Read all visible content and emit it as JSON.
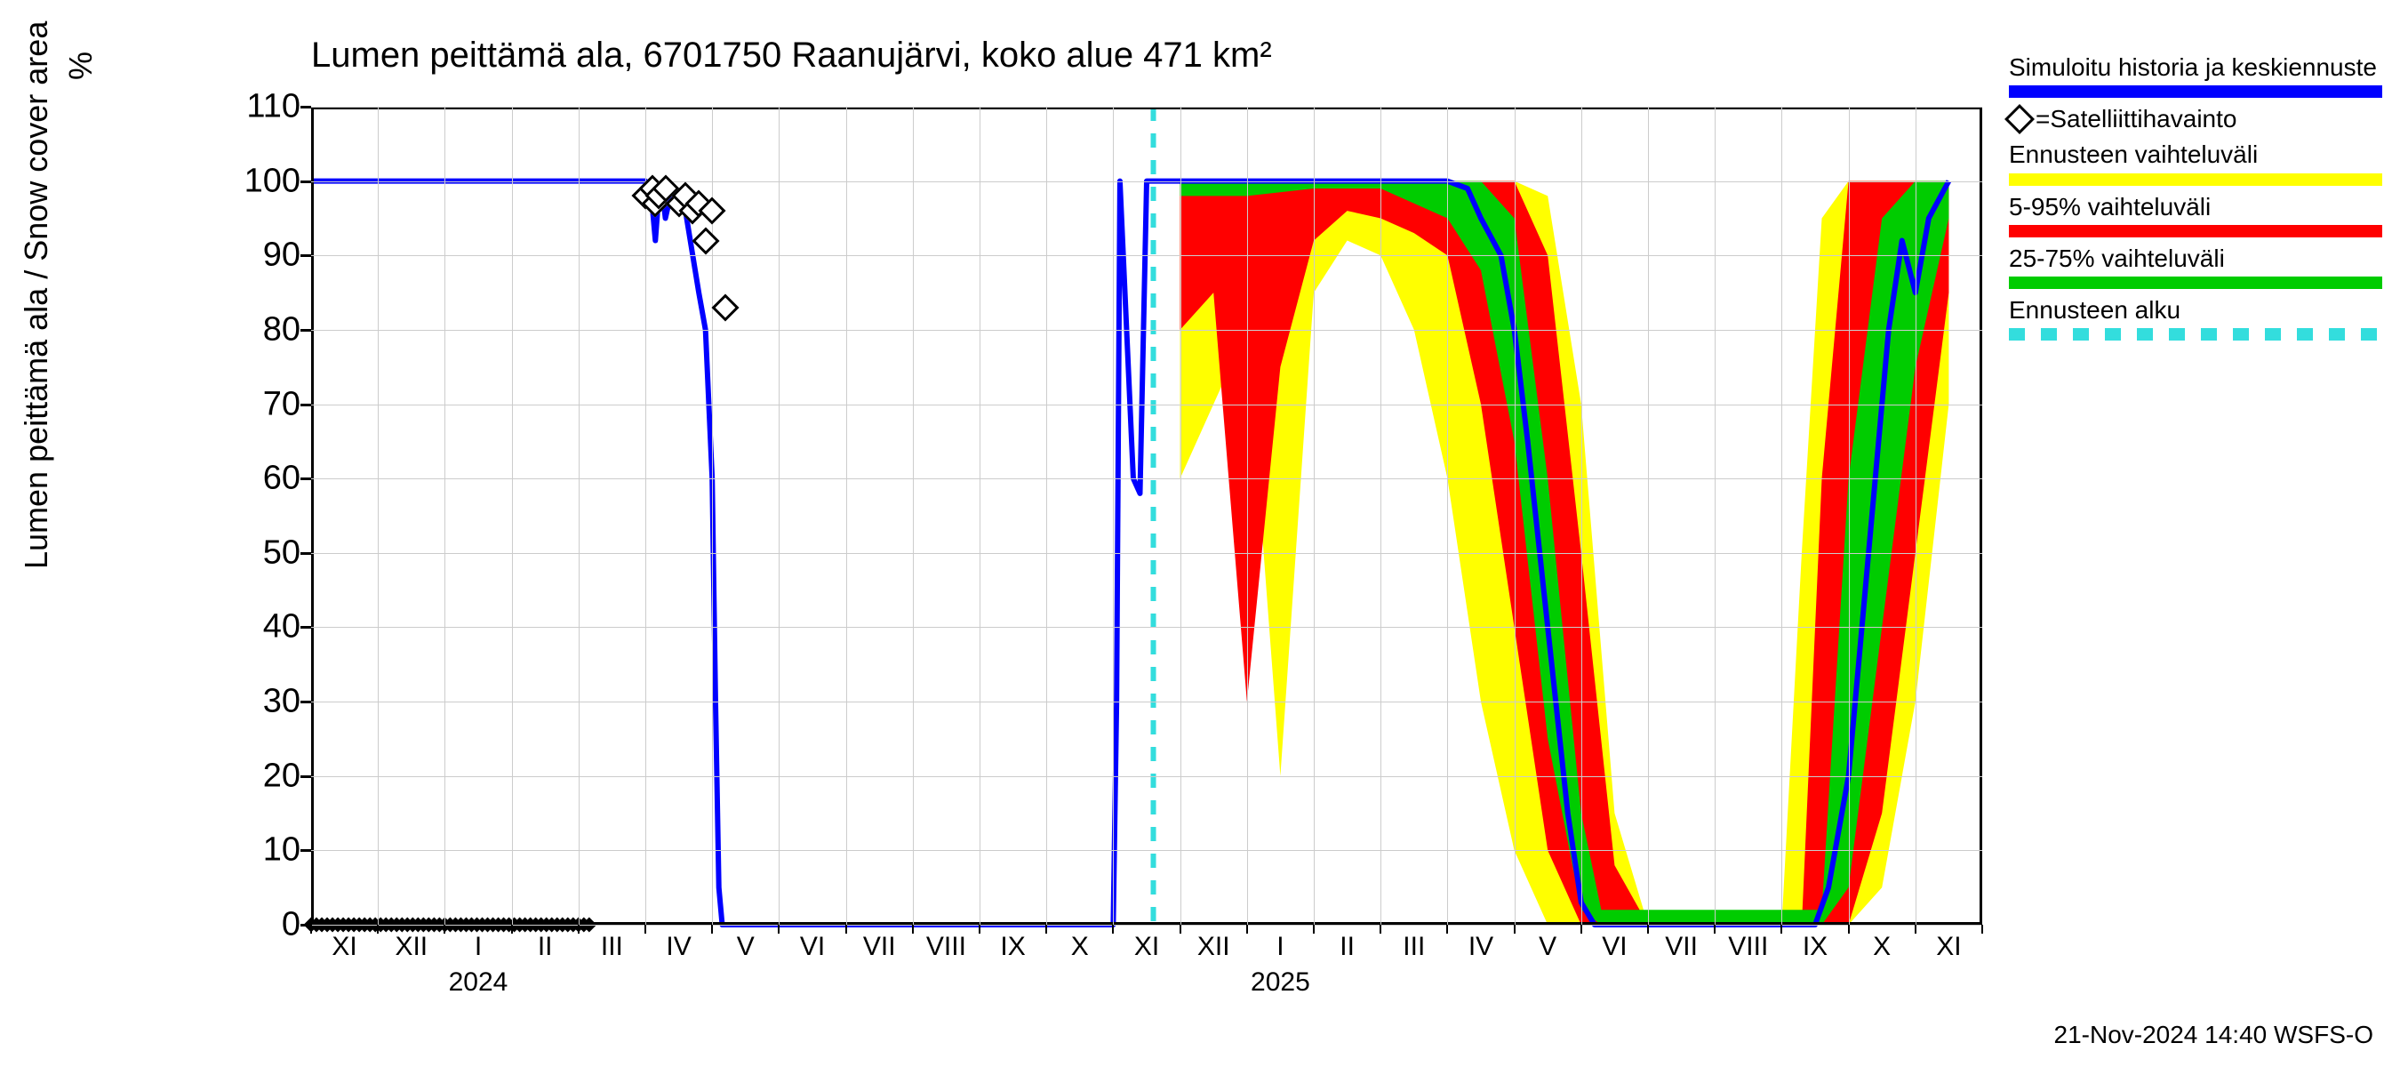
{
  "chart": {
    "type": "line-with-bands",
    "title": "Lumen peittämä ala, 6701750 Raanujärvi, koko alue 471 km²",
    "y_label": "Lumen peittämä ala / Snow cover area",
    "y_unit": "%",
    "background_color": "#ffffff",
    "grid_color": "#cccccc",
    "axis_color": "#000000",
    "title_fontsize": 40,
    "label_fontsize": 36,
    "tick_fontsize": 38,
    "xtick_fontsize": 30,
    "ylim": [
      0,
      110
    ],
    "yticks": [
      0,
      10,
      20,
      30,
      40,
      50,
      60,
      70,
      80,
      90,
      100,
      110
    ],
    "x_months": [
      "XI",
      "XII",
      "I",
      "II",
      "III",
      "IV",
      "V",
      "VI",
      "VII",
      "VIII",
      "IX",
      "X",
      "XI",
      "XII",
      "I",
      "II",
      "III",
      "IV",
      "V",
      "VI",
      "VII",
      "VIII",
      "IX",
      "X",
      "XI"
    ],
    "x_years": [
      {
        "label": "2024",
        "at_index": 2.5
      },
      {
        "label": "2025",
        "at_index": 14.5
      }
    ],
    "colors": {
      "median": "#0000ff",
      "range_full": "#ffff00",
      "range_5_95": "#ff0000",
      "range_25_75": "#00cc00",
      "forecast_start": "#33dddd",
      "satellite_marker_border": "#000000",
      "satellite_marker_fill": "#ffffff"
    },
    "line_widths": {
      "median": 6,
      "forecast_dash": 6
    },
    "forecast_start_x": 12.6,
    "median_line": [
      [
        0,
        100
      ],
      [
        5,
        100
      ],
      [
        5.1,
        97
      ],
      [
        5.15,
        92
      ],
      [
        5.2,
        98
      ],
      [
        5.25,
        99
      ],
      [
        5.3,
        95
      ],
      [
        5.4,
        99
      ],
      [
        5.6,
        96
      ],
      [
        5.8,
        85
      ],
      [
        5.9,
        80
      ],
      [
        6.0,
        60
      ],
      [
        6.05,
        30
      ],
      [
        6.1,
        5
      ],
      [
        6.15,
        0
      ],
      [
        12,
        0
      ],
      [
        12.05,
        30
      ],
      [
        12.1,
        100
      ],
      [
        12.3,
        60
      ],
      [
        12.4,
        58
      ],
      [
        12.5,
        100
      ],
      [
        12.6,
        100
      ],
      [
        17,
        100
      ],
      [
        17.3,
        99
      ],
      [
        17.5,
        95
      ],
      [
        17.8,
        90
      ],
      [
        18,
        80
      ],
      [
        18.2,
        65
      ],
      [
        18.5,
        40
      ],
      [
        18.8,
        15
      ],
      [
        19,
        3
      ],
      [
        19.2,
        0
      ],
      [
        22.5,
        0
      ],
      [
        22.7,
        5
      ],
      [
        23,
        20
      ],
      [
        23.3,
        50
      ],
      [
        23.6,
        80
      ],
      [
        23.8,
        92
      ],
      [
        24,
        85
      ],
      [
        24.2,
        95
      ],
      [
        24.5,
        100
      ]
    ],
    "band_full": [
      {
        "x": 13,
        "lo": 60,
        "hi": 100
      },
      {
        "x": 13.5,
        "lo": 70,
        "hi": 100
      },
      {
        "x": 14,
        "lo": 80,
        "hi": 100
      },
      {
        "x": 14.5,
        "lo": 20,
        "hi": 100
      },
      {
        "x": 15,
        "lo": 85,
        "hi": 100
      },
      {
        "x": 15.5,
        "lo": 92,
        "hi": 100
      },
      {
        "x": 16,
        "lo": 90,
        "hi": 100
      },
      {
        "x": 16.5,
        "lo": 80,
        "hi": 100
      },
      {
        "x": 17,
        "lo": 60,
        "hi": 100
      },
      {
        "x": 17.5,
        "lo": 30,
        "hi": 100
      },
      {
        "x": 18,
        "lo": 10,
        "hi": 100
      },
      {
        "x": 18.5,
        "lo": 0,
        "hi": 98
      },
      {
        "x": 19,
        "lo": 0,
        "hi": 70
      },
      {
        "x": 19.5,
        "lo": 0,
        "hi": 15
      },
      {
        "x": 20,
        "lo": 0,
        "hi": 0
      },
      {
        "x": 22,
        "lo": 0,
        "hi": 0
      },
      {
        "x": 22.3,
        "lo": 0,
        "hi": 50
      },
      {
        "x": 22.6,
        "lo": 0,
        "hi": 95
      },
      {
        "x": 23,
        "lo": 0,
        "hi": 100
      },
      {
        "x": 23.5,
        "lo": 5,
        "hi": 100
      },
      {
        "x": 24,
        "lo": 30,
        "hi": 100
      },
      {
        "x": 24.5,
        "lo": 70,
        "hi": 100
      }
    ],
    "band_5_95": [
      {
        "x": 13,
        "lo": 80,
        "hi": 100
      },
      {
        "x": 13.5,
        "lo": 85,
        "hi": 100
      },
      {
        "x": 14,
        "lo": 30,
        "hi": 100
      },
      {
        "x": 14.5,
        "lo": 75,
        "hi": 100
      },
      {
        "x": 15,
        "lo": 92,
        "hi": 100
      },
      {
        "x": 15.5,
        "lo": 96,
        "hi": 100
      },
      {
        "x": 16,
        "lo": 95,
        "hi": 100
      },
      {
        "x": 16.5,
        "lo": 93,
        "hi": 100
      },
      {
        "x": 17,
        "lo": 90,
        "hi": 100
      },
      {
        "x": 17.5,
        "lo": 70,
        "hi": 100
      },
      {
        "x": 18,
        "lo": 40,
        "hi": 100
      },
      {
        "x": 18.5,
        "lo": 10,
        "hi": 90
      },
      {
        "x": 19,
        "lo": 0,
        "hi": 50
      },
      {
        "x": 19.5,
        "lo": 0,
        "hi": 8
      },
      {
        "x": 20,
        "lo": 0,
        "hi": 0
      },
      {
        "x": 22.3,
        "lo": 0,
        "hi": 0
      },
      {
        "x": 22.6,
        "lo": 0,
        "hi": 60
      },
      {
        "x": 23,
        "lo": 0,
        "hi": 100
      },
      {
        "x": 23.5,
        "lo": 15,
        "hi": 100
      },
      {
        "x": 24,
        "lo": 50,
        "hi": 100
      },
      {
        "x": 24.5,
        "lo": 85,
        "hi": 100
      }
    ],
    "band_25_75": [
      {
        "x": 13,
        "lo": 98,
        "hi": 100
      },
      {
        "x": 14,
        "lo": 98,
        "hi": 100
      },
      {
        "x": 15,
        "lo": 99,
        "hi": 100
      },
      {
        "x": 16,
        "lo": 99,
        "hi": 100
      },
      {
        "x": 17,
        "lo": 95,
        "hi": 100
      },
      {
        "x": 17.5,
        "lo": 88,
        "hi": 100
      },
      {
        "x": 18,
        "lo": 65,
        "hi": 95
      },
      {
        "x": 18.5,
        "lo": 25,
        "hi": 60
      },
      {
        "x": 19,
        "lo": 2,
        "hi": 15
      },
      {
        "x": 19.3,
        "lo": 0,
        "hi": 2
      },
      {
        "x": 22.6,
        "lo": 0,
        "hi": 2
      },
      {
        "x": 23,
        "lo": 5,
        "hi": 60
      },
      {
        "x": 23.5,
        "lo": 40,
        "hi": 95
      },
      {
        "x": 24,
        "lo": 75,
        "hi": 100
      },
      {
        "x": 24.5,
        "lo": 95,
        "hi": 100
      }
    ],
    "satellite_points": [
      {
        "x": 5.0,
        "y": 98
      },
      {
        "x": 5.1,
        "y": 99
      },
      {
        "x": 5.15,
        "y": 97
      },
      {
        "x": 5.2,
        "y": 98
      },
      {
        "x": 5.3,
        "y": 99
      },
      {
        "x": 5.5,
        "y": 97
      },
      {
        "x": 5.6,
        "y": 98
      },
      {
        "x": 5.7,
        "y": 96
      },
      {
        "x": 5.8,
        "y": 97
      },
      {
        "x": 5.9,
        "y": 92
      },
      {
        "x": 6.0,
        "y": 96
      },
      {
        "x": 6.2,
        "y": 83
      }
    ],
    "zero_markers": {
      "from": 0,
      "to": 4.2
    }
  },
  "legend": {
    "items": [
      {
        "text": "Simuloitu historia ja keskiennuste",
        "swatch": "#0000ff",
        "type": "line"
      },
      {
        "text": "=Satelliittihavainto",
        "type": "marker"
      },
      {
        "text": "Ennusteen vaihteluväli",
        "swatch": "#ffff00",
        "type": "line"
      },
      {
        "text": "5-95% vaihteluväli",
        "swatch": "#ff0000",
        "type": "line"
      },
      {
        "text": "25-75% vaihteluväli",
        "swatch": "#00cc00",
        "type": "line"
      },
      {
        "text": "Ennusteen alku",
        "swatch": "#33dddd",
        "type": "dash"
      }
    ]
  },
  "footer": "21-Nov-2024 14:40 WSFS-O"
}
